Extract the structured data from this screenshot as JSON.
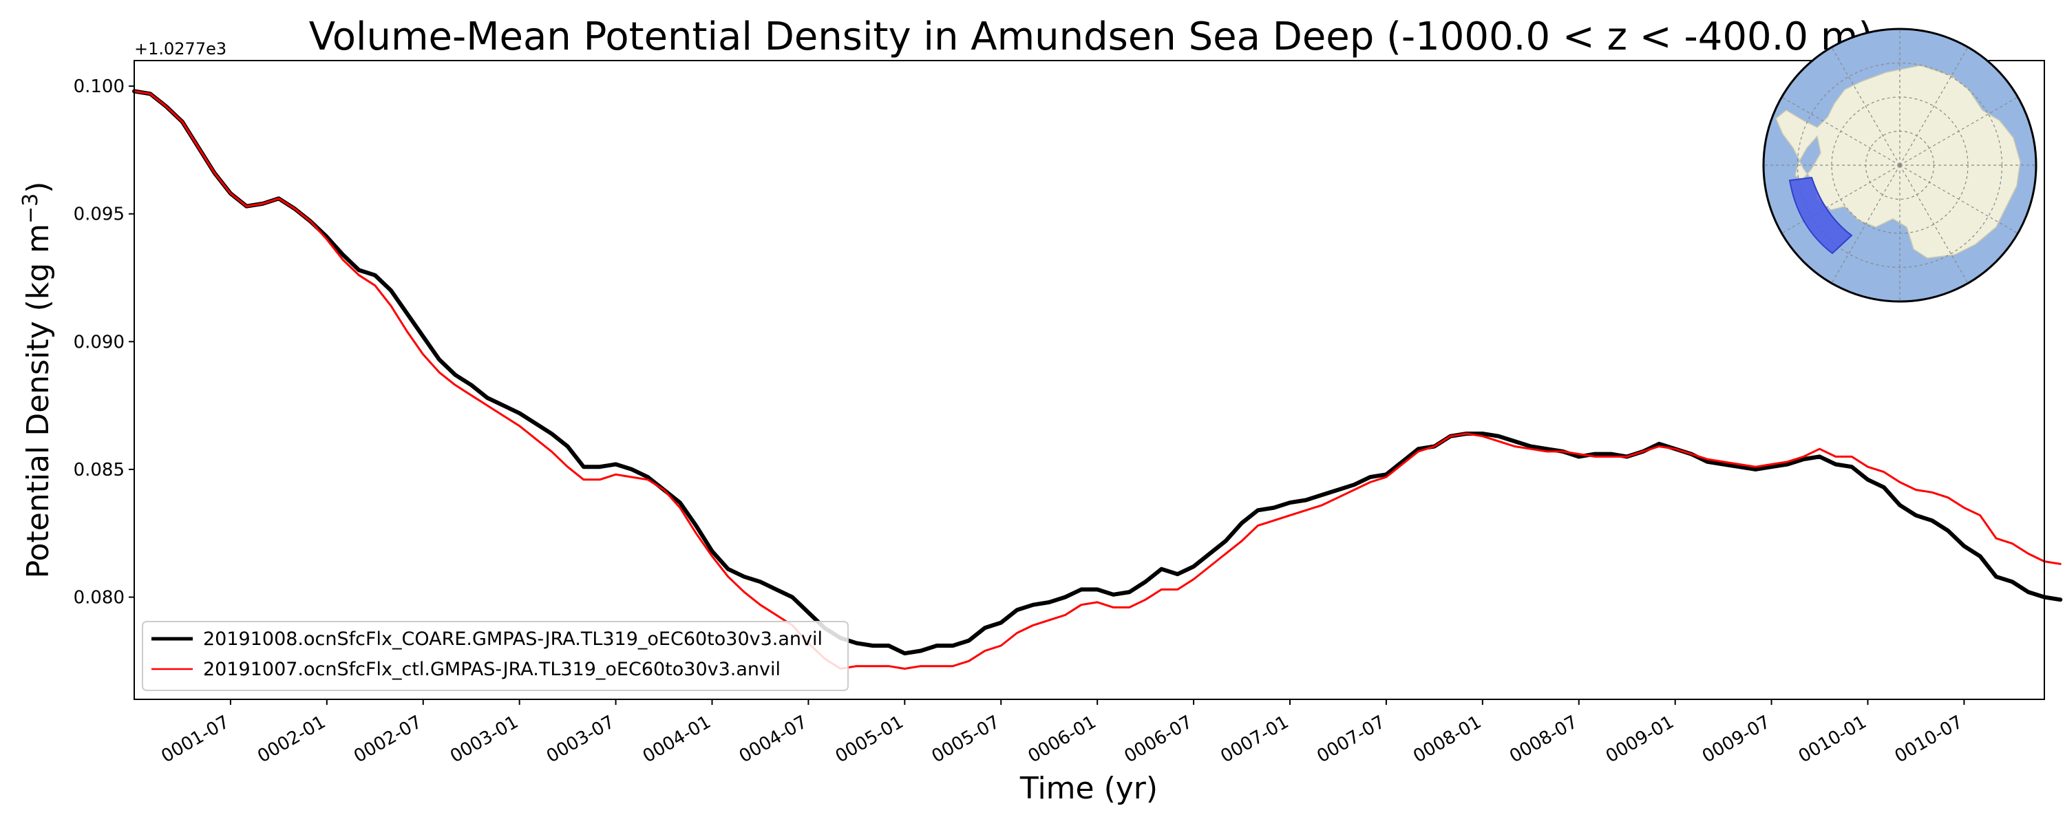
{
  "chart_data": {
    "type": "line",
    "title": "Volume-Mean Potential Density in Amundsen Sea Deep (-1000.0 < z < -400.0 m)",
    "xlabel": "Time (yr)",
    "ylabel": "Potential Density (kg m",
    "ylabel_sup": "−3",
    "ylabel_close": ")",
    "y_offset_text": "+1.0277e3",
    "xlim": [
      "0001-01",
      "0010-12"
    ],
    "ylim": [
      0.076,
      0.101
    ],
    "x_ticks": [
      "0001-07",
      "0002-01",
      "0002-07",
      "0003-01",
      "0003-07",
      "0004-01",
      "0004-07",
      "0005-01",
      "0005-07",
      "0006-01",
      "0006-07",
      "0007-01",
      "0007-07",
      "0008-01",
      "0008-07",
      "0009-01",
      "0009-07",
      "0010-01",
      "0010-07"
    ],
    "y_ticks": [
      "0.080",
      "0.085",
      "0.090",
      "0.095",
      "0.100"
    ],
    "legend_position": "lower-left",
    "series": [
      {
        "name": "20191008.ocnSfcFlx_COARE.GMPAS-JRA.TL319_oEC60to30v3.anvil",
        "color": "#000000",
        "linewidth": "thick",
        "values": [
          0.0998,
          0.0997,
          0.0992,
          0.0986,
          0.0976,
          0.0966,
          0.0958,
          0.0953,
          0.0954,
          0.0956,
          0.0952,
          0.0947,
          0.0941,
          0.0934,
          0.0928,
          0.0926,
          0.092,
          0.0911,
          0.0902,
          0.0893,
          0.0887,
          0.0883,
          0.0878,
          0.0875,
          0.0872,
          0.0868,
          0.0864,
          0.0859,
          0.0851,
          0.0851,
          0.0852,
          0.085,
          0.0847,
          0.0842,
          0.0837,
          0.0828,
          0.0818,
          0.0811,
          0.0808,
          0.0806,
          0.0803,
          0.08,
          0.0794,
          0.0788,
          0.0784,
          0.0782,
          0.0781,
          0.0781,
          0.0778,
          0.0779,
          0.0781,
          0.0781,
          0.0783,
          0.0788,
          0.079,
          0.0795,
          0.0797,
          0.0798,
          0.08,
          0.0803,
          0.0803,
          0.0801,
          0.0802,
          0.0806,
          0.0811,
          0.0809,
          0.0812,
          0.0817,
          0.0822,
          0.0829,
          0.0834,
          0.0835,
          0.0837,
          0.0838,
          0.084,
          0.0842,
          0.0844,
          0.0847,
          0.0848,
          0.0853,
          0.0858,
          0.0859,
          0.0863,
          0.0864,
          0.0864,
          0.0863,
          0.0861,
          0.0859,
          0.0858,
          0.0857,
          0.0855,
          0.0856,
          0.0856,
          0.0855,
          0.0857,
          0.086,
          0.0858,
          0.0856,
          0.0853,
          0.0852,
          0.0851,
          0.085,
          0.0851,
          0.0852,
          0.0854,
          0.0855,
          0.0852,
          0.0851,
          0.0846,
          0.0843,
          0.0836,
          0.0832,
          0.083,
          0.0826,
          0.082,
          0.0816,
          0.0808,
          0.0806,
          0.0802,
          0.08,
          0.0799
        ]
      },
      {
        "name": "20191007.ocnSfcFlx_ctl.GMPAS-JRA.TL319_oEC60to30v3.anvil",
        "color": "#ff0000",
        "linewidth": "thin",
        "values": [
          0.0998,
          0.0997,
          0.0992,
          0.0986,
          0.0976,
          0.0966,
          0.0958,
          0.0953,
          0.0954,
          0.0956,
          0.0952,
          0.0947,
          0.094,
          0.0932,
          0.0926,
          0.0922,
          0.0914,
          0.0904,
          0.0895,
          0.0888,
          0.0883,
          0.0879,
          0.0875,
          0.0871,
          0.0867,
          0.0862,
          0.0857,
          0.0851,
          0.0846,
          0.0846,
          0.0848,
          0.0847,
          0.0846,
          0.0842,
          0.0835,
          0.0825,
          0.0816,
          0.0808,
          0.0802,
          0.0797,
          0.0793,
          0.0789,
          0.0782,
          0.0776,
          0.0772,
          0.0773,
          0.0773,
          0.0773,
          0.0772,
          0.0773,
          0.0773,
          0.0773,
          0.0775,
          0.0779,
          0.0781,
          0.0786,
          0.0789,
          0.0791,
          0.0793,
          0.0797,
          0.0798,
          0.0796,
          0.0796,
          0.0799,
          0.0803,
          0.0803,
          0.0807,
          0.0812,
          0.0817,
          0.0822,
          0.0828,
          0.083,
          0.0832,
          0.0834,
          0.0836,
          0.0839,
          0.0842,
          0.0845,
          0.0847,
          0.0852,
          0.0857,
          0.0859,
          0.0863,
          0.0864,
          0.0863,
          0.0861,
          0.0859,
          0.0858,
          0.0857,
          0.0857,
          0.0856,
          0.0855,
          0.0855,
          0.0855,
          0.0857,
          0.0859,
          0.0858,
          0.0856,
          0.0854,
          0.0853,
          0.0852,
          0.0851,
          0.0852,
          0.0853,
          0.0855,
          0.0858,
          0.0855,
          0.0855,
          0.0851,
          0.0849,
          0.0845,
          0.0842,
          0.0841,
          0.0839,
          0.0835,
          0.0832,
          0.0823,
          0.0821,
          0.0817,
          0.0814,
          0.0813
        ]
      }
    ]
  },
  "inset_map": {
    "ocean_color": "#97b6e2",
    "land_color": "#efefdb",
    "region_color": "#4a5ae6",
    "region_name": "Amundsen Sea Deep"
  }
}
